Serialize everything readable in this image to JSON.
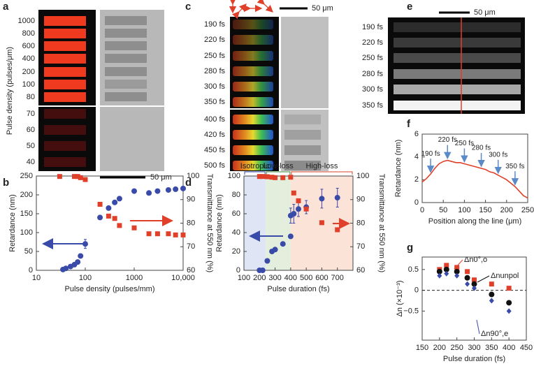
{
  "image_panels": [
    {
      "letter": "a",
      "ylabel": "Pulse density (pulses/μm)",
      "labels": [
        "1000",
        "800",
        "600",
        "400",
        "200",
        "100",
        "80",
        "70",
        "60",
        "50",
        "40"
      ],
      "scalebar": "50 μm"
    },
    {
      "letter": "c",
      "labels": [
        "190 fs",
        "220 fs",
        "250 fs",
        "280 fs",
        "300 fs",
        "350 fs",
        "400 fs",
        "420 fs",
        "450 fs",
        "500 fs"
      ],
      "scalebar": "50 μm"
    },
    {
      "letter": "e",
      "labels": [
        "190 fs",
        "220 fs",
        "250 fs",
        "280 fs",
        "300 fs",
        "350 fs"
      ],
      "scalebar": "50 μm"
    }
  ],
  "chart_data": [
    {
      "type": "scatter",
      "panel": "b",
      "xlabel": "Pulse density (pulses/mm)",
      "ylabel": "Retardance (nm)",
      "y2label": "Transmittance at 550 nm (%)",
      "xscale": "log",
      "xlim": [
        10,
        10000
      ],
      "xticks": [
        10,
        100,
        1000,
        {
          "value": 10000,
          "label": "10,000"
        }
      ],
      "ylim": [
        0,
        250
      ],
      "yticks": [
        0,
        50,
        100,
        150,
        200,
        250
      ],
      "y2lim": [
        60,
        100
      ],
      "y2ticks": [
        60,
        70,
        80,
        90,
        100
      ],
      "series": [
        {
          "color": "#3a4aa8",
          "marker": "circle",
          "x": [
            35,
            40,
            50,
            60,
            70,
            80,
            100,
            200,
            300,
            400,
            500,
            1000,
            2000,
            3000,
            5000,
            7000,
            10000
          ],
          "values": [
            2,
            5,
            10,
            15,
            22,
            38,
            70,
            140,
            165,
            180,
            190,
            210,
            205,
            210,
            213,
            215,
            217
          ],
          "errors": [
            null,
            null,
            null,
            null,
            null,
            null,
            12,
            null,
            null,
            null,
            null,
            5,
            null,
            null,
            null,
            null,
            null
          ]
        },
        {
          "color": "#e0402a",
          "marker": "square",
          "axis": "y2",
          "x": [
            30,
            60,
            70,
            80,
            100,
            200,
            300,
            400,
            500,
            1000,
            2000,
            3000,
            5000,
            7000,
            10000
          ],
          "values": [
            99.8,
            99.8,
            99.8,
            99.3,
            98.5,
            88,
            83,
            82,
            79,
            78,
            75.5,
            75.5,
            75.5,
            75,
            75
          ]
        }
      ]
    },
    {
      "type": "scatter",
      "panel": "d",
      "xlabel": "Pulse duration (fs)",
      "ylabel": "Retardance (nm)",
      "y2label": "Transmittance at 550 nm (%)",
      "xlim": [
        100,
        800
      ],
      "xticks": [
        100,
        200,
        300,
        400,
        500,
        600,
        700
      ],
      "ylim": [
        0,
        100
      ],
      "yticks": [
        0,
        20,
        40,
        60,
        80,
        100
      ],
      "y2lim": [
        60,
        100
      ],
      "y2ticks": [
        60,
        70,
        80,
        90,
        100
      ],
      "regions": [
        {
          "label": "Isotropic",
          "color": "#2f4aa8",
          "fill": "#dfe5f4",
          "range": [
            100,
            240
          ]
        },
        {
          "label": "Low-loss",
          "color": "#3a8a3a",
          "fill": "#e3efdc",
          "range": [
            240,
            400
          ]
        },
        {
          "label": "High-loss",
          "color": "#d8402a",
          "fill": "#fbe3d8",
          "range": [
            400,
            800
          ]
        }
      ],
      "series": [
        {
          "color": "#3a4aa8",
          "marker": "circle",
          "x": [
            200,
            220,
            250,
            280,
            300,
            350,
            400,
            400,
            420,
            450,
            500,
            600,
            700
          ],
          "values": [
            0,
            0,
            10,
            20,
            22,
            28,
            36,
            58,
            60,
            65,
            67,
            76,
            77
          ],
          "errors": [
            null,
            null,
            null,
            null,
            null,
            null,
            null,
            8,
            10,
            8,
            7,
            10,
            10
          ]
        },
        {
          "color": "#e0402a",
          "marker": "square",
          "axis": "y2",
          "x": [
            200,
            220,
            250,
            280,
            300,
            350,
            400,
            420,
            450,
            500,
            600,
            700
          ],
          "values": [
            99.8,
            99.8,
            99.7,
            99.5,
            99.3,
            99.3,
            99.5,
            92.8,
            89.5,
            86,
            80.2,
            77.2
          ]
        }
      ]
    },
    {
      "type": "line",
      "panel": "f",
      "xlabel": "Position along the line (μm)",
      "ylabel": "Retardance (nm)",
      "color": "#e0402a",
      "xlim": [
        0,
        250
      ],
      "xticks": [
        0,
        50,
        100,
        150,
        200,
        250
      ],
      "ylim": [
        0,
        6
      ],
      "yticks": [
        0,
        2,
        4,
        6
      ],
      "x": [
        0,
        10,
        20,
        30,
        40,
        50,
        60,
        70,
        80,
        90,
        100,
        110,
        120,
        130,
        140,
        150,
        160,
        170,
        180,
        190,
        200,
        210,
        220,
        230,
        240,
        250
      ],
      "values": [
        1.8,
        2.1,
        2.5,
        3.0,
        3.4,
        3.6,
        3.7,
        3.6,
        3.5,
        3.5,
        3.4,
        3.3,
        3.2,
        3.1,
        3.0,
        2.9,
        2.7,
        2.6,
        2.4,
        2.2,
        2.0,
        1.7,
        1.4,
        1.0,
        0.6,
        0.4
      ],
      "annotations": [
        {
          "label": "190 fs",
          "x": 20
        },
        {
          "label": "220 fs",
          "x": 60
        },
        {
          "label": "250 fs",
          "x": 100
        },
        {
          "label": "280 fs",
          "x": 140
        },
        {
          "label": "300 fs",
          "x": 180
        },
        {
          "label": "350 fs",
          "x": 220
        }
      ]
    },
    {
      "type": "scatter",
      "panel": "g",
      "xlabel": "Pulse duration (fs)",
      "ylabel": "Δn (×10⁻³)",
      "zero_line": true,
      "xlim": [
        150,
        450
      ],
      "xticks": [
        150,
        200,
        250,
        300,
        350,
        400,
        450
      ],
      "ylim": [
        -1.2,
        0.8
      ],
      "yticks": [
        {
          "value": -0.5,
          "label": "−0.5"
        },
        0,
        0.5
      ],
      "series": [
        {
          "name": "Δn0°,o",
          "color": "#e0402a",
          "marker": "square",
          "x": [
            200,
            220,
            250,
            280,
            300,
            350,
            400
          ],
          "values": [
            0.5,
            0.6,
            0.55,
            0.45,
            0.25,
            0.15,
            0.05
          ]
        },
        {
          "name": "Δnunpol",
          "color": "#111111",
          "marker": "circle",
          "x": [
            200,
            220,
            250,
            280,
            300,
            350,
            400
          ],
          "values": [
            0.45,
            0.5,
            0.45,
            0.3,
            0.15,
            -0.1,
            -0.3
          ]
        },
        {
          "name": "Δn90°,e",
          "color": "#3a4aa8",
          "marker": "diamond",
          "x": [
            200,
            220,
            250,
            280,
            300,
            350,
            400
          ],
          "values": [
            0.35,
            0.4,
            0.35,
            0.15,
            0.05,
            -0.25,
            -0.5
          ]
        }
      ]
    }
  ]
}
